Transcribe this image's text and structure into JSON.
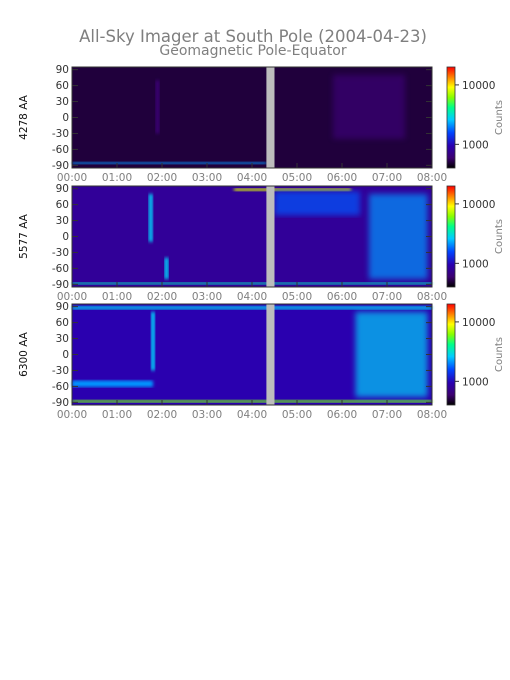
{
  "chart_data": {
    "type": "heatmap",
    "title": "All-Sky Imager at South Pole (2004-04-23)",
    "subtitle": "Geomagnetic Pole-Equator",
    "xticks": [
      "00:00",
      "01:00",
      "02:00",
      "03:00",
      "04:00",
      "05:00",
      "06:00",
      "07:00",
      "08:00"
    ],
    "xlim_hours": [
      0,
      8
    ],
    "ylim": [
      -95,
      95
    ],
    "yticks": [
      "90",
      "60",
      "30",
      "0",
      "-30",
      "-60",
      "-90"
    ],
    "ytick_values": [
      90,
      60,
      30,
      0,
      -30,
      -60,
      -90
    ],
    "data_gap_hours": [
      4.32,
      4.5
    ],
    "colorbar": {
      "label": "Counts",
      "ticks": [
        "10000",
        "1000"
      ],
      "tick_values": [
        10000,
        1000
      ],
      "range": [
        400,
        20000
      ],
      "colors": [
        "#000000",
        "#3c0070",
        "#2a00b0",
        "#0044ff",
        "#00ccff",
        "#00ff88",
        "#88ff00",
        "#ffff00",
        "#ff8000",
        "#ff0000"
      ]
    },
    "panels": [
      {
        "ylabel": "4278 AA",
        "background_level": 0.06,
        "features": [
          {
            "kind": "band",
            "y": -86,
            "width": 4,
            "t0": 0,
            "t1": 4.32,
            "level": 0.4
          },
          {
            "kind": "streak",
            "t": 1.9,
            "y0": -30,
            "y1": 70,
            "level": 0.12
          },
          {
            "kind": "patch",
            "t0": 5.8,
            "t1": 7.4,
            "y0": -40,
            "y1": 80,
            "level": 0.12
          }
        ]
      },
      {
        "ylabel": "5577 AA",
        "background_level": 0.18,
        "features": [
          {
            "kind": "band",
            "y": -88,
            "width": 4,
            "t0": 0,
            "t1": 8,
            "level": 0.5
          },
          {
            "kind": "band",
            "y": 88,
            "width": 5,
            "t0": 3.6,
            "t1": 6.2,
            "level": 0.75
          },
          {
            "kind": "streak",
            "t": 1.75,
            "y0": -10,
            "y1": 80,
            "level": 0.45
          },
          {
            "kind": "streak",
            "t": 2.1,
            "y0": -80,
            "y1": -40,
            "level": 0.45
          },
          {
            "kind": "patch",
            "t0": 6.6,
            "t1": 7.9,
            "y0": -80,
            "y1": 80,
            "level": 0.4
          },
          {
            "kind": "patch",
            "t0": 4.5,
            "t1": 6.4,
            "y0": 40,
            "y1": 85,
            "level": 0.35
          }
        ]
      },
      {
        "ylabel": "6300 AA",
        "background_level": 0.22,
        "features": [
          {
            "kind": "band",
            "y": -88,
            "width": 5,
            "t0": 0,
            "t1": 8,
            "level": 0.65
          },
          {
            "kind": "band",
            "y": -55,
            "width": 12,
            "t0": 0,
            "t1": 1.8,
            "level": 0.4
          },
          {
            "kind": "band",
            "y": 88,
            "width": 6,
            "t0": 0,
            "t1": 8,
            "level": 0.45
          },
          {
            "kind": "streak",
            "t": 1.8,
            "y0": -30,
            "y1": 80,
            "level": 0.45
          },
          {
            "kind": "patch",
            "t0": 6.3,
            "t1": 7.9,
            "y0": -80,
            "y1": 80,
            "level": 0.45
          }
        ]
      }
    ]
  }
}
